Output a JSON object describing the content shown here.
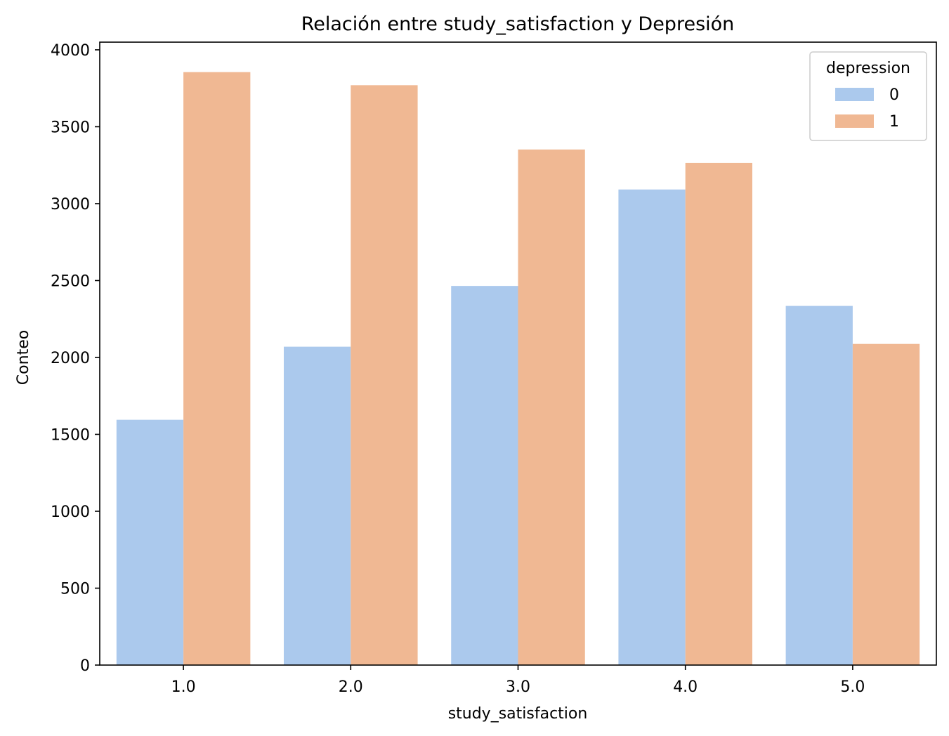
{
  "chart_data": {
    "type": "bar",
    "title": "Relación entre study_satisfaction y Depresión",
    "xlabel": "study_satisfaction",
    "ylabel": "Conteo",
    "categories": [
      "1.0",
      "2.0",
      "3.0",
      "4.0",
      "5.0"
    ],
    "ylim": [
      0,
      4050
    ],
    "yticks": [
      0,
      500,
      1000,
      1500,
      2000,
      2500,
      3000,
      3500,
      4000
    ],
    "grid": false,
    "legend": {
      "title": "depression",
      "position": "top-right"
    },
    "series": [
      {
        "name": "0",
        "color": "#abc9ed",
        "values": [
          1595,
          2070,
          2465,
          3092,
          2335
        ]
      },
      {
        "name": "1",
        "color": "#f0b893",
        "values": [
          3855,
          3770,
          3352,
          3265,
          2088
        ]
      }
    ]
  }
}
